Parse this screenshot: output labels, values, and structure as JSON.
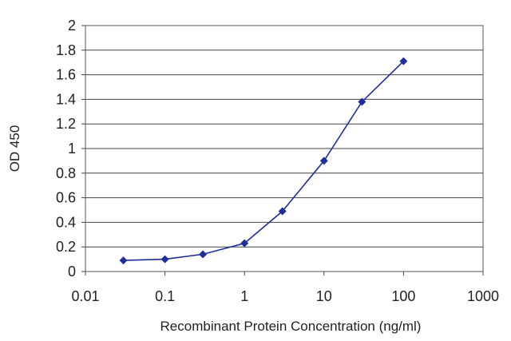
{
  "chart_data": {
    "type": "line",
    "xlabel": "Recombinant Protein Concentration (ng/ml)",
    "ylabel": "OD 450",
    "x_scale": "log",
    "xlim": [
      0.01,
      1000
    ],
    "ylim": [
      0,
      2
    ],
    "x_ticks": [
      "0.01",
      "0.1",
      "1",
      "10",
      "100",
      "1000"
    ],
    "y_ticks": [
      "0",
      "0.2",
      "0.4",
      "0.6",
      "0.8",
      "1",
      "1.2",
      "1.4",
      "1.6",
      "1.8",
      "2"
    ],
    "grid": "horizontal",
    "series": [
      {
        "x": [
          0.03,
          0.1,
          0.3,
          1,
          3,
          10,
          30,
          100
        ],
        "y": [
          0.09,
          0.1,
          0.14,
          0.23,
          0.49,
          0.9,
          1.38,
          1.71
        ],
        "color": "#1f2e9c",
        "marker": "diamond"
      }
    ]
  }
}
